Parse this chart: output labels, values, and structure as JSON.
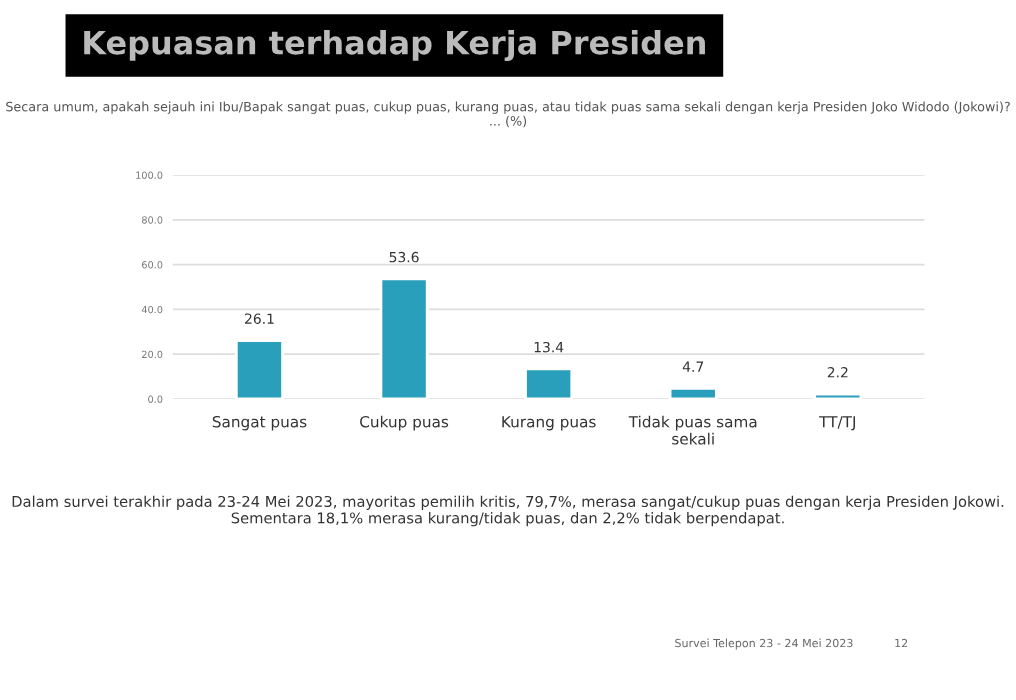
{
  "chart_data": {
    "type": "bar",
    "title": "Kepuasan terhadap Kerja Presiden",
    "subtitle": "Secara umum, apakah sejauh ini Ibu/Bapak sangat puas, cukup puas, kurang puas, atau tidak puas sama sekali dengan kerja Presiden Joko Widodo (Jokowi)? ... (%)",
    "categories": [
      "Sangat puas",
      "Cukup puas",
      "Kurang puas",
      "Tidak puas sama sekali",
      "TT/TJ"
    ],
    "values": [
      26.1,
      53.6,
      13.4,
      4.7,
      2.2
    ],
    "color": "#2a9fbc",
    "value_labels": [
      "26.1",
      "53.6",
      "13.4",
      "4.7",
      "2.2"
    ],
    "ylim": [
      0,
      100
    ],
    "yticks": [
      {
        "value": 0,
        "label": "0.0"
      },
      {
        "value": 20,
        "label": "20.0"
      },
      {
        "value": 40,
        "label": "40.0"
      },
      {
        "value": 60,
        "label": "60.0"
      },
      {
        "value": 80,
        "label": "80.0"
      },
      {
        "value": 100,
        "label": "100.0"
      }
    ],
    "grid": "y",
    "annotations": [
      "Dalam survei terakhir pada 23-24 Mei 2023, mayoritas pemilih kritis, 79,7%, merasa sangat/cukup puas dengan kerja Presiden Jokowi. Sementara 18,1% merasa kurang/tidak puas, dan 2,2% tidak berpendapat.",
      "Survei Telepon 23 - 24 Mei 2023",
      "12"
    ]
  }
}
